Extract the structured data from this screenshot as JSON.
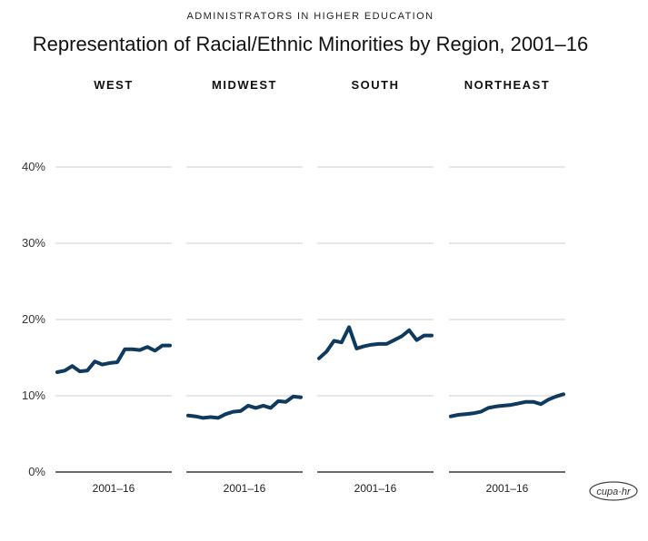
{
  "supertitle": "ADMINISTRATORS IN HIGHER EDUCATION",
  "title": "Representation of Racial/Ethnic Minorities by Region, 2001–16",
  "logo_text": "cupa·hr",
  "chart_data": {
    "type": "line",
    "ylim": [
      0,
      40
    ],
    "yticks": [
      0,
      10,
      20,
      30,
      40
    ],
    "ytick_labels": [
      "0%",
      "10%",
      "20%",
      "30%",
      "40%"
    ],
    "grid": true,
    "line_color": "#0f3a5f",
    "panels": [
      {
        "name": "WEST",
        "xlabel": "2001–16",
        "values": [
          13.1,
          13.3,
          13.9,
          13.2,
          13.3,
          14.5,
          14.1,
          14.3,
          14.4,
          16.1,
          16.1,
          16.0,
          16.4,
          15.9,
          16.6,
          16.6
        ]
      },
      {
        "name": "MIDWEST",
        "xlabel": "2001–16",
        "values": [
          7.4,
          7.3,
          7.1,
          7.2,
          7.1,
          7.6,
          7.9,
          8.0,
          8.7,
          8.4,
          8.7,
          8.4,
          9.3,
          9.2,
          9.9,
          9.8
        ]
      },
      {
        "name": "SOUTH",
        "xlabel": "2001–16",
        "values": [
          14.9,
          15.8,
          17.2,
          17.0,
          19.0,
          16.2,
          16.5,
          16.7,
          16.8,
          16.8,
          17.3,
          17.8,
          18.6,
          17.3,
          17.9,
          17.9
        ]
      },
      {
        "name": "NORTHEAST",
        "xlabel": "2001–16",
        "values": [
          7.3,
          7.5,
          7.6,
          7.7,
          7.9,
          8.4,
          8.6,
          8.7,
          8.8,
          9.0,
          9.2,
          9.2,
          8.9,
          9.5,
          9.9,
          10.2
        ]
      }
    ]
  }
}
